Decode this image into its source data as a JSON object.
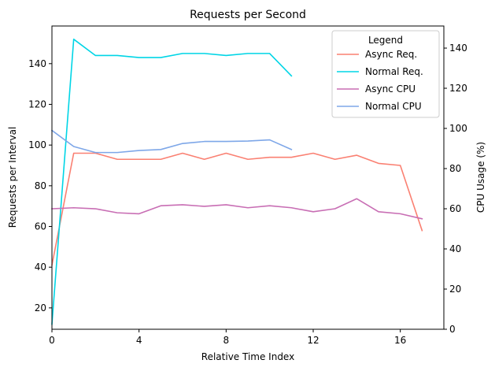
{
  "chart_data": {
    "type": "line",
    "title": "Requests per Second",
    "xlabel": "Relative Time Index",
    "ylabel": "Requests per Interval",
    "y2label": "CPU Usage (%)",
    "xlim": [
      0,
      18
    ],
    "ylim": [
      9.5,
      158.5
    ],
    "y2lim": [
      0,
      151
    ],
    "xticks": [
      0,
      4,
      8,
      12,
      16
    ],
    "yticks": [
      20,
      40,
      60,
      80,
      100,
      120,
      140
    ],
    "y2ticks": [
      0,
      20,
      40,
      60,
      80,
      100,
      120,
      140
    ],
    "legend": {
      "title": "Legend",
      "position": "top-right"
    },
    "series": [
      {
        "name": "Async Req.",
        "axis": "left",
        "color": "#fa8072",
        "x": [
          0,
          1,
          2,
          3,
          4,
          5,
          6,
          7,
          8,
          9,
          10,
          11,
          12,
          13,
          14,
          15,
          16,
          17
        ],
        "values": [
          41,
          96,
          96,
          93,
          93,
          93,
          96,
          93,
          96,
          93,
          94,
          94,
          96,
          93,
          95,
          91,
          90,
          58
        ]
      },
      {
        "name": "Normal Req.",
        "axis": "left",
        "color": "#00d5e6",
        "x": [
          0,
          1,
          2,
          3,
          4,
          5,
          6,
          7,
          8,
          9,
          10,
          11
        ],
        "values": [
          12,
          152,
          144,
          144,
          143,
          143,
          145,
          145,
          144,
          145,
          145,
          134
        ]
      },
      {
        "name": "Async CPU",
        "axis": "right",
        "color": "#c86eb4",
        "x": [
          0,
          1,
          2,
          3,
          4,
          5,
          6,
          7,
          8,
          9,
          10,
          11,
          12,
          13,
          14,
          15,
          16,
          17
        ],
        "values": [
          60,
          60.5,
          60,
          58,
          57.5,
          61.5,
          62,
          61.2,
          62,
          60.5,
          61.5,
          60.5,
          58.5,
          60,
          65,
          58.5,
          57.5,
          55
        ]
      },
      {
        "name": "Normal CPU",
        "axis": "right",
        "color": "#7ea7e8",
        "x": [
          0,
          1,
          2,
          3,
          4,
          5,
          6,
          7,
          8,
          9,
          10,
          11
        ],
        "values": [
          99,
          91,
          88,
          88,
          89,
          89.5,
          92.5,
          93.5,
          93.5,
          93.7,
          94.3,
          89.5
        ]
      }
    ]
  }
}
